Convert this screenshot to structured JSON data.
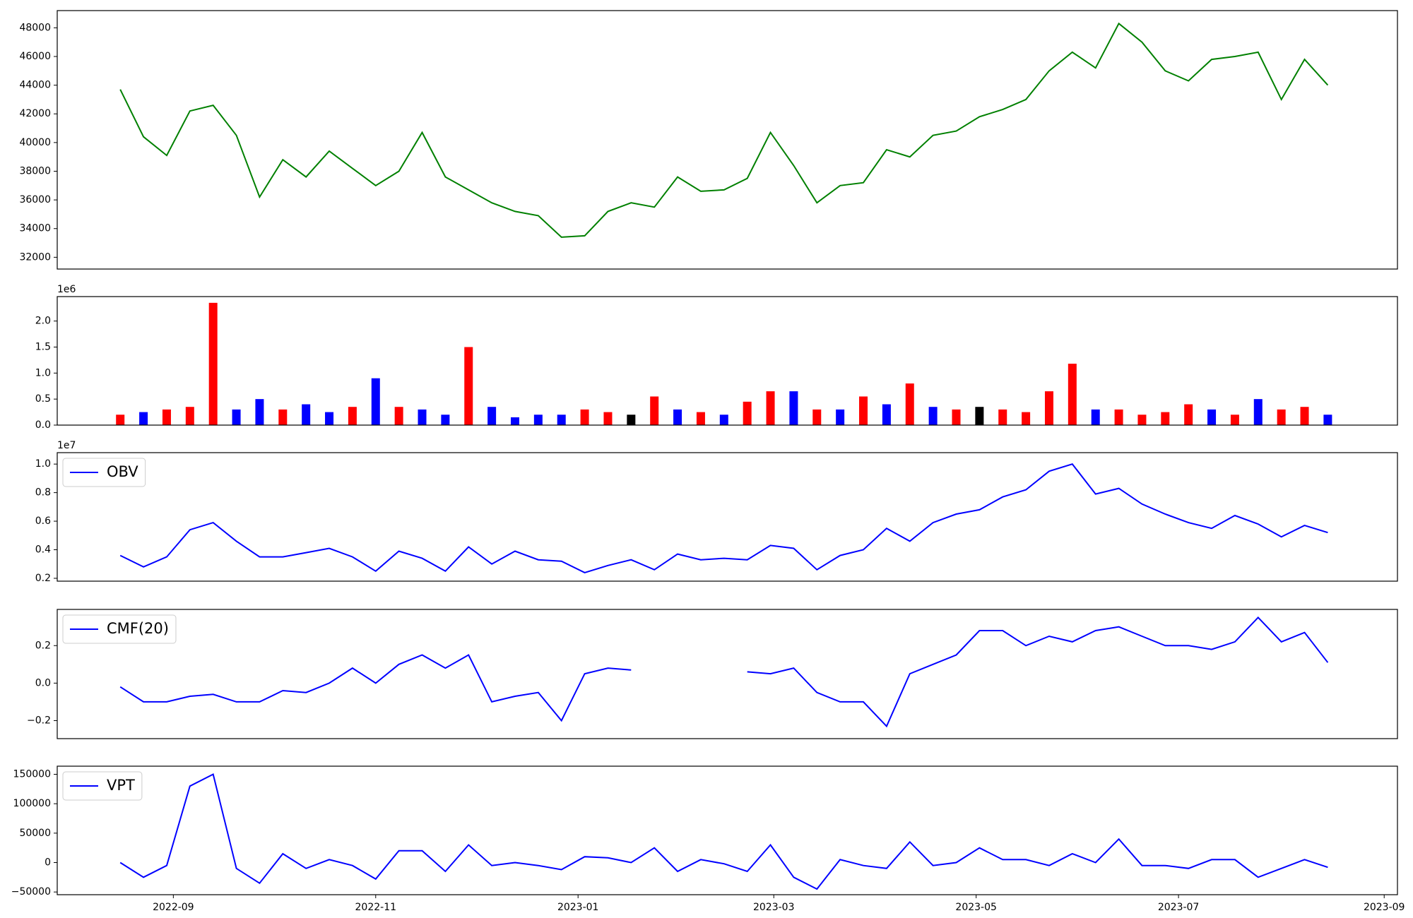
{
  "chart_data": [
    {
      "type": "line",
      "xlim": [
        "2022-07-28",
        "2023-09-05"
      ],
      "ylim": [
        31180,
        49200
      ],
      "yticks": [
        32000,
        34000,
        36000,
        38000,
        40000,
        42000,
        44000,
        46000,
        48000
      ],
      "x": [
        "2022-08-16",
        "2022-08-23",
        "2022-08-30",
        "2022-09-06",
        "2022-09-13",
        "2022-09-20",
        "2022-09-27",
        "2022-10-04",
        "2022-10-11",
        "2022-10-18",
        "2022-10-25",
        "2022-11-01",
        "2022-11-08",
        "2022-11-15",
        "2022-11-22",
        "2022-11-29",
        "2022-12-06",
        "2022-12-13",
        "2022-12-20",
        "2022-12-27",
        "2023-01-03",
        "2023-01-10",
        "2023-01-17",
        "2023-01-24",
        "2023-01-31",
        "2023-02-07",
        "2023-02-14",
        "2023-02-21",
        "2023-02-28",
        "2023-03-07",
        "2023-03-14",
        "2023-03-21",
        "2023-03-28",
        "2023-04-04",
        "2023-04-11",
        "2023-04-18",
        "2023-04-25",
        "2023-05-02",
        "2023-05-09",
        "2023-05-16",
        "2023-05-23",
        "2023-05-30",
        "2023-06-06",
        "2023-06-13",
        "2023-06-20",
        "2023-06-27",
        "2023-07-04",
        "2023-07-11",
        "2023-07-18",
        "2023-07-25",
        "2023-08-01",
        "2023-08-08",
        "2023-08-15"
      ],
      "series": [
        {
          "color": "#008000",
          "values": [
            43700,
            40400,
            39100,
            42200,
            42600,
            40500,
            36200,
            38800,
            37600,
            39400,
            38200,
            37000,
            38000,
            40700,
            37600,
            36700,
            35800,
            35200,
            34900,
            33400,
            33500,
            35200,
            35800,
            35500,
            37600,
            36600,
            36700,
            37500,
            40700,
            38400,
            35800,
            37000,
            37200,
            39500,
            39000,
            40500,
            40800,
            41800,
            42300,
            43000,
            45000,
            46300,
            45200,
            48300,
            47000,
            45000,
            44300,
            45800,
            46000,
            46300,
            43000,
            45800,
            44000
          ]
        }
      ]
    },
    {
      "type": "bar",
      "xlim": [
        "2022-07-28",
        "2023-09-05"
      ],
      "ylim": [
        0,
        2470000
      ],
      "offset_label": "1e6",
      "yticks": [
        {
          "value": 0,
          "label": "0.0"
        },
        {
          "value": 500000,
          "label": "0.5"
        },
        {
          "value": 1000000,
          "label": "1.0"
        },
        {
          "value": 1500000,
          "label": "1.5"
        },
        {
          "value": 2000000,
          "label": "2.0"
        }
      ],
      "x": [
        "2022-08-16",
        "2022-08-23",
        "2022-08-30",
        "2022-09-06",
        "2022-09-13",
        "2022-09-20",
        "2022-09-27",
        "2022-10-04",
        "2022-10-11",
        "2022-10-18",
        "2022-10-25",
        "2022-11-01",
        "2022-11-08",
        "2022-11-15",
        "2022-11-22",
        "2022-11-29",
        "2022-12-06",
        "2022-12-13",
        "2022-12-20",
        "2022-12-27",
        "2023-01-03",
        "2023-01-10",
        "2023-01-17",
        "2023-01-24",
        "2023-01-31",
        "2023-02-07",
        "2023-02-14",
        "2023-02-21",
        "2023-02-28",
        "2023-03-07",
        "2023-03-14",
        "2023-03-21",
        "2023-03-28",
        "2023-04-04",
        "2023-04-11",
        "2023-04-18",
        "2023-04-25",
        "2023-05-02",
        "2023-05-09",
        "2023-05-16",
        "2023-05-23",
        "2023-05-30",
        "2023-06-06",
        "2023-06-13",
        "2023-06-20",
        "2023-06-27",
        "2023-07-04",
        "2023-07-11",
        "2023-07-18",
        "2023-07-25",
        "2023-08-01",
        "2023-08-08",
        "2023-08-15"
      ],
      "series": [
        {
          "values": [
            200000,
            250000,
            300000,
            350000,
            2350000,
            300000,
            500000,
            300000,
            400000,
            250000,
            350000,
            900000,
            350000,
            300000,
            200000,
            1500000,
            350000,
            150000,
            200000,
            200000,
            300000,
            250000,
            200000,
            550000,
            300000,
            250000,
            200000,
            450000,
            650000,
            650000,
            300000,
            300000,
            550000,
            400000,
            800000,
            350000,
            300000,
            350000,
            300000,
            250000,
            650000,
            1180000,
            300000,
            300000,
            200000,
            250000,
            400000,
            300000,
            200000,
            500000,
            300000,
            350000,
            200000
          ],
          "colors": [
            "red",
            "blue",
            "red",
            "red",
            "red",
            "blue",
            "blue",
            "red",
            "blue",
            "blue",
            "red",
            "blue",
            "red",
            "blue",
            "blue",
            "red",
            "blue",
            "blue",
            "blue",
            "blue",
            "red",
            "red",
            "black",
            "red",
            "blue",
            "red",
            "blue",
            "red",
            "red",
            "blue",
            "red",
            "blue",
            "red",
            "blue",
            "red",
            "blue",
            "red",
            "black",
            "red",
            "red",
            "red",
            "red",
            "blue",
            "red",
            "red",
            "red",
            "red",
            "blue",
            "red",
            "blue",
            "red",
            "red",
            "blue"
          ]
        }
      ]
    },
    {
      "type": "line",
      "xlim": [
        "2022-07-28",
        "2023-09-05"
      ],
      "ylim": [
        1800000,
        10800000
      ],
      "offset_label": "1e7",
      "legend": "upper left",
      "yticks": [
        {
          "value": 2000000,
          "label": "0.2"
        },
        {
          "value": 4000000,
          "label": "0.4"
        },
        {
          "value": 6000000,
          "label": "0.6"
        },
        {
          "value": 8000000,
          "label": "0.8"
        },
        {
          "value": 10000000,
          "label": "1.0"
        }
      ],
      "x": [
        "2022-08-16",
        "2022-08-23",
        "2022-08-30",
        "2022-09-06",
        "2022-09-13",
        "2022-09-20",
        "2022-09-27",
        "2022-10-04",
        "2022-10-11",
        "2022-10-18",
        "2022-10-25",
        "2022-11-01",
        "2022-11-08",
        "2022-11-15",
        "2022-11-22",
        "2022-11-29",
        "2022-12-06",
        "2022-12-13",
        "2022-12-20",
        "2022-12-27",
        "2023-01-03",
        "2023-01-10",
        "2023-01-17",
        "2023-01-24",
        "2023-01-31",
        "2023-02-07",
        "2023-02-14",
        "2023-02-21",
        "2023-02-28",
        "2023-03-07",
        "2023-03-14",
        "2023-03-21",
        "2023-03-28",
        "2023-04-04",
        "2023-04-11",
        "2023-04-18",
        "2023-04-25",
        "2023-05-02",
        "2023-05-09",
        "2023-05-16",
        "2023-05-23",
        "2023-05-30",
        "2023-06-06",
        "2023-06-13",
        "2023-06-20",
        "2023-06-27",
        "2023-07-04",
        "2023-07-11",
        "2023-07-18",
        "2023-07-25",
        "2023-08-01",
        "2023-08-08",
        "2023-08-15"
      ],
      "series": [
        {
          "name": "OBV",
          "color": "#0000ff",
          "values": [
            3600000,
            2800000,
            3500000,
            5400000,
            5900000,
            4600000,
            3500000,
            3500000,
            3800000,
            4100000,
            3500000,
            2500000,
            3900000,
            3400000,
            2500000,
            4200000,
            3000000,
            3900000,
            3300000,
            3200000,
            2400000,
            2900000,
            3300000,
            2600000,
            3700000,
            3300000,
            3400000,
            3300000,
            4300000,
            4100000,
            2600000,
            3600000,
            4000000,
            5500000,
            4600000,
            5900000,
            6500000,
            6800000,
            7700000,
            8200000,
            9500000,
            10000000,
            7900000,
            8300000,
            7200000,
            6500000,
            5900000,
            5500000,
            6400000,
            5800000,
            4900000,
            5700000,
            5200000
          ]
        }
      ]
    },
    {
      "type": "line",
      "xlim": [
        "2022-07-28",
        "2023-09-05"
      ],
      "ylim": [
        -0.296,
        0.393
      ],
      "legend": "upper left",
      "yticks": [
        {
          "value": -0.2,
          "label": "−0.2"
        },
        {
          "value": 0,
          "label": "0.0"
        },
        0.2
      ],
      "x": [
        "2022-08-16",
        "2022-08-23",
        "2022-08-30",
        "2022-09-06",
        "2022-09-13",
        "2022-09-20",
        "2022-09-27",
        "2022-10-04",
        "2022-10-11",
        "2022-10-18",
        "2022-10-25",
        "2022-11-01",
        "2022-11-08",
        "2022-11-15",
        "2022-11-22",
        "2022-11-29",
        "2022-12-06",
        "2022-12-13",
        "2022-12-20",
        "2022-12-27",
        "2023-01-03",
        "2023-01-10",
        "2023-01-17",
        "2023-01-24",
        "2023-01-31",
        "2023-02-07",
        "2023-02-14",
        "2023-02-21",
        "2023-02-28",
        "2023-03-07",
        "2023-03-14",
        "2023-03-21",
        "2023-03-28",
        "2023-04-04",
        "2023-04-11",
        "2023-04-18",
        "2023-04-25",
        "2023-05-02",
        "2023-05-09",
        "2023-05-16",
        "2023-05-23",
        "2023-05-30",
        "2023-06-06",
        "2023-06-13",
        "2023-06-20",
        "2023-06-27",
        "2023-07-04",
        "2023-07-11",
        "2023-07-18",
        "2023-07-25",
        "2023-08-01",
        "2023-08-08",
        "2023-08-15"
      ],
      "series": [
        {
          "name": "CMF(20)",
          "color": "#0000ff",
          "values": [
            -0.02,
            -0.1,
            -0.1,
            -0.07,
            -0.06,
            -0.1,
            -0.1,
            -0.04,
            -0.05,
            0.0,
            0.08,
            0.0,
            0.1,
            0.15,
            0.08,
            0.15,
            -0.1,
            -0.07,
            -0.05,
            -0.2,
            0.05,
            0.08,
            0.07,
            null,
            null,
            null,
            null,
            0.06,
            0.05,
            0.08,
            -0.05,
            -0.1,
            -0.1,
            -0.23,
            0.05,
            0.1,
            0.15,
            0.28,
            0.28,
            0.2,
            0.25,
            0.22,
            0.28,
            0.3,
            0.25,
            0.2,
            0.2,
            0.18,
            0.22,
            0.35,
            0.22,
            0.27,
            0.11
          ]
        }
      ]
    },
    {
      "type": "line",
      "xlim": [
        "2022-07-28",
        "2023-09-05"
      ],
      "ylim": [
        -54600,
        163800
      ],
      "legend": "upper left",
      "yticks": [
        {
          "value": -50000,
          "label": "−50000"
        },
        0,
        50000,
        100000,
        150000
      ],
      "xticks": [
        {
          "value": "2022-09-01",
          "label": "2022-09"
        },
        {
          "value": "2022-11-01",
          "label": "2022-11"
        },
        {
          "value": "2023-01-01",
          "label": "2023-01"
        },
        {
          "value": "2023-03-01",
          "label": "2023-03"
        },
        {
          "value": "2023-05-01",
          "label": "2023-05"
        },
        {
          "value": "2023-07-01",
          "label": "2023-07"
        },
        {
          "value": "2023-09-01",
          "label": "2023-09"
        }
      ],
      "x": [
        "2022-08-16",
        "2022-08-23",
        "2022-08-30",
        "2022-09-06",
        "2022-09-13",
        "2022-09-20",
        "2022-09-27",
        "2022-10-04",
        "2022-10-11",
        "2022-10-18",
        "2022-10-25",
        "2022-11-01",
        "2022-11-08",
        "2022-11-15",
        "2022-11-22",
        "2022-11-29",
        "2022-12-06",
        "2022-12-13",
        "2022-12-20",
        "2022-12-27",
        "2023-01-03",
        "2023-01-10",
        "2023-01-17",
        "2023-01-24",
        "2023-01-31",
        "2023-02-07",
        "2023-02-14",
        "2023-02-21",
        "2023-02-28",
        "2023-03-07",
        "2023-03-14",
        "2023-03-21",
        "2023-03-28",
        "2023-04-04",
        "2023-04-11",
        "2023-04-18",
        "2023-04-25",
        "2023-05-02",
        "2023-05-09",
        "2023-05-16",
        "2023-05-23",
        "2023-05-30",
        "2023-06-06",
        "2023-06-13",
        "2023-06-20",
        "2023-06-27",
        "2023-07-04",
        "2023-07-11",
        "2023-07-18",
        "2023-07-25",
        "2023-08-01",
        "2023-08-08",
        "2023-08-15"
      ],
      "series": [
        {
          "name": "VPT",
          "color": "#0000ff",
          "values": [
            0,
            -25000,
            -5000,
            130000,
            150000,
            -10000,
            -35000,
            15000,
            -10000,
            5000,
            -5000,
            -28000,
            20000,
            20000,
            -15000,
            30000,
            -5000,
            0,
            -5000,
            -12000,
            10000,
            8000,
            0,
            25000,
            -15000,
            5000,
            -2000,
            -15000,
            30000,
            -25000,
            -45000,
            5000,
            -5000,
            -10000,
            35000,
            -5000,
            0,
            25000,
            5000,
            5000,
            -5000,
            15000,
            0,
            40000,
            -5000,
            -5000,
            -10000,
            5000,
            5000,
            -25000,
            -10000,
            5000,
            -8000
          ]
        }
      ]
    }
  ]
}
